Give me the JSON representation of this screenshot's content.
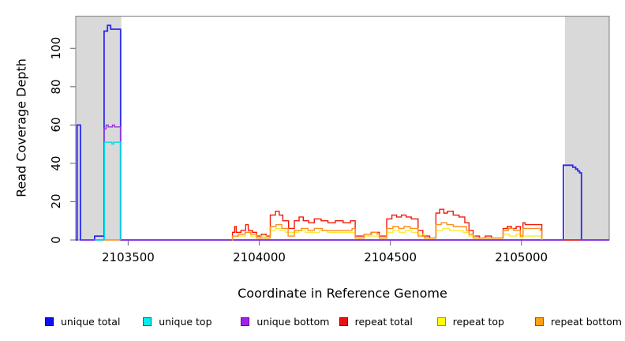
{
  "chart_data": {
    "type": "line",
    "step": true,
    "title": "",
    "xlabel": "Coordinate in Reference Genome",
    "ylabel": "Read Coverage Depth",
    "xlim": [
      2103300,
      2105335
    ],
    "ylim": [
      0,
      116.8
    ],
    "x_ticks": [
      2103500,
      2104000,
      2104500,
      2105000
    ],
    "y_ticks": [
      0,
      20,
      40,
      60,
      80,
      100
    ],
    "grid": false,
    "legend_position": "bottom",
    "colors": {
      "band": "#d9d9d9",
      "box": "#8f8f8f",
      "tick": "#7a7a7a",
      "text": "#000000"
    },
    "shaded_regions": [
      [
        2103302,
        2103474
      ],
      [
        2105166,
        2105335
      ]
    ],
    "series": [
      {
        "name": "unique total",
        "color": "#2a2af2",
        "width": 1.8,
        "segments": [
          [
            [
              2103300,
              0
            ],
            [
              2103305,
              60
            ],
            [
              2103318,
              0
            ],
            [
              2103372,
              2
            ],
            [
              2103408,
              109
            ],
            [
              2103421,
              112
            ],
            [
              2103433,
              110
            ],
            [
              2103471,
              0
            ],
            [
              2105160,
              39
            ],
            [
              2105196,
              38
            ],
            [
              2105207,
              37
            ],
            [
              2105215,
              36
            ],
            [
              2105222,
              35
            ],
            [
              2105229,
              0
            ],
            [
              2105335,
              0
            ]
          ]
        ]
      },
      {
        "name": "unique bottom",
        "color": "#9b30e2",
        "width": 1.4,
        "segments": [
          [
            [
              2103318,
              0
            ],
            [
              2103408,
              58
            ],
            [
              2103416,
              60
            ],
            [
              2103424,
              59
            ],
            [
              2103440,
              60
            ],
            [
              2103448,
              59
            ],
            [
              2103471,
              0
            ],
            [
              2105335,
              0
            ]
          ]
        ]
      },
      {
        "name": "unique top",
        "color": "#00dce8",
        "width": 1.4,
        "segments": [
          [
            [
              2103372,
              0
            ],
            [
              2103410,
              51
            ],
            [
              2103434,
              51
            ],
            [
              2103438,
              50
            ],
            [
              2103444,
              51
            ],
            [
              2103470,
              51
            ],
            [
              2103471,
              0
            ]
          ]
        ]
      },
      {
        "name": "repeat total",
        "color": "#f01a0a",
        "width": 1.4,
        "segments": [
          [
            [
              2103896,
              0
            ],
            [
              2103898,
              4
            ],
            [
              2103906,
              7
            ],
            [
              2103912,
              4
            ],
            [
              2103930,
              5
            ],
            [
              2103948,
              8
            ],
            [
              2103958,
              5
            ],
            [
              2103974,
              4
            ],
            [
              2103990,
              2
            ],
            [
              2104008,
              3
            ],
            [
              2104026,
              2
            ],
            [
              2104042,
              13
            ],
            [
              2104062,
              15
            ],
            [
              2104076,
              13
            ],
            [
              2104090,
              10
            ],
            [
              2104112,
              6
            ],
            [
              2104134,
              10
            ],
            [
              2104152,
              12
            ],
            [
              2104168,
              10
            ],
            [
              2104188,
              9
            ],
            [
              2104210,
              11
            ],
            [
              2104236,
              10
            ],
            [
              2104262,
              9
            ],
            [
              2104290,
              10
            ],
            [
              2104320,
              9
            ],
            [
              2104348,
              10
            ],
            [
              2104366,
              2
            ],
            [
              2104400,
              3
            ],
            [
              2104428,
              4
            ],
            [
              2104458,
              2
            ],
            [
              2104472,
              2
            ],
            [
              2104486,
              11
            ],
            [
              2104506,
              13
            ],
            [
              2104524,
              12
            ],
            [
              2104542,
              13
            ],
            [
              2104560,
              12
            ],
            [
              2104580,
              11
            ],
            [
              2104606,
              5
            ],
            [
              2104624,
              2
            ],
            [
              2104650,
              1
            ],
            [
              2104674,
              14
            ],
            [
              2104688,
              16
            ],
            [
              2104704,
              14
            ],
            [
              2104718,
              15
            ],
            [
              2104740,
              13
            ],
            [
              2104762,
              12
            ],
            [
              2104784,
              9
            ],
            [
              2104800,
              5
            ],
            [
              2104816,
              2
            ],
            [
              2104840,
              1
            ],
            [
              2104862,
              2
            ],
            [
              2104886,
              1
            ],
            [
              2104910,
              1
            ],
            [
              2104930,
              6
            ],
            [
              2104946,
              7
            ],
            [
              2104962,
              6
            ],
            [
              2104980,
              7
            ],
            [
              2104996,
              2
            ],
            [
              2105006,
              9
            ],
            [
              2105014,
              8
            ],
            [
              2105044,
              8
            ],
            [
              2105070,
              8
            ],
            [
              2105078,
              0
            ]
          ],
          [
            [
              2105163,
              0
            ],
            [
              2105228,
              0
            ]
          ]
        ]
      },
      {
        "name": "repeat top",
        "color": "#f7ec3c",
        "width": 1.4,
        "segments": [
          [
            [
              2103896,
              0
            ],
            [
              2103898,
              2
            ],
            [
              2103926,
              2
            ],
            [
              2103948,
              4
            ],
            [
              2103968,
              2
            ],
            [
              2103990,
              1
            ],
            [
              2104008,
              2
            ],
            [
              2104026,
              1
            ],
            [
              2104042,
              5
            ],
            [
              2104062,
              6
            ],
            [
              2104080,
              5
            ],
            [
              2104100,
              4
            ],
            [
              2104126,
              4
            ],
            [
              2104150,
              5
            ],
            [
              2104176,
              4
            ],
            [
              2104202,
              4
            ],
            [
              2104230,
              5
            ],
            [
              2104260,
              4
            ],
            [
              2104292,
              4
            ],
            [
              2104322,
              4
            ],
            [
              2104350,
              4
            ],
            [
              2104366,
              1
            ],
            [
              2104400,
              2
            ],
            [
              2104430,
              2
            ],
            [
              2104458,
              1
            ],
            [
              2104486,
              4
            ],
            [
              2104510,
              5
            ],
            [
              2104534,
              4
            ],
            [
              2104558,
              5
            ],
            [
              2104582,
              4
            ],
            [
              2104606,
              3
            ],
            [
              2104630,
              1
            ],
            [
              2104674,
              5
            ],
            [
              2104700,
              6
            ],
            [
              2104726,
              5
            ],
            [
              2104752,
              5
            ],
            [
              2104778,
              4
            ],
            [
              2104800,
              2
            ],
            [
              2104820,
              1
            ],
            [
              2104850,
              1
            ],
            [
              2104880,
              1
            ],
            [
              2104910,
              1
            ],
            [
              2104930,
              3
            ],
            [
              2104954,
              2
            ],
            [
              2104980,
              3
            ],
            [
              2104996,
              1
            ],
            [
              2105006,
              2
            ],
            [
              2105040,
              2
            ],
            [
              2105070,
              2
            ],
            [
              2105078,
              0
            ]
          ]
        ]
      },
      {
        "name": "repeat bottom",
        "color": "#ff8d1e",
        "width": 1.4,
        "segments": [
          [
            [
              2103896,
              0
            ],
            [
              2103898,
              2
            ],
            [
              2103920,
              3
            ],
            [
              2103946,
              4
            ],
            [
              2103968,
              3
            ],
            [
              2103990,
              1
            ],
            [
              2104010,
              1
            ],
            [
              2104042,
              7
            ],
            [
              2104064,
              8
            ],
            [
              2104086,
              6
            ],
            [
              2104110,
              2
            ],
            [
              2104134,
              5
            ],
            [
              2104160,
              6
            ],
            [
              2104186,
              5
            ],
            [
              2104210,
              6
            ],
            [
              2104240,
              5
            ],
            [
              2104270,
              5
            ],
            [
              2104302,
              5
            ],
            [
              2104332,
              5
            ],
            [
              2104354,
              6
            ],
            [
              2104366,
              1
            ],
            [
              2104400,
              3
            ],
            [
              2104426,
              4
            ],
            [
              2104450,
              3
            ],
            [
              2104458,
              1
            ],
            [
              2104486,
              6
            ],
            [
              2104510,
              7
            ],
            [
              2104532,
              6
            ],
            [
              2104552,
              7
            ],
            [
              2104576,
              6
            ],
            [
              2104606,
              2
            ],
            [
              2104630,
              1
            ],
            [
              2104674,
              8
            ],
            [
              2104694,
              9
            ],
            [
              2104716,
              8
            ],
            [
              2104740,
              7
            ],
            [
              2104766,
              7
            ],
            [
              2104790,
              5
            ],
            [
              2104800,
              3
            ],
            [
              2104816,
              1
            ],
            [
              2104846,
              1
            ],
            [
              2104876,
              1
            ],
            [
              2104906,
              1
            ],
            [
              2104930,
              5
            ],
            [
              2104950,
              6
            ],
            [
              2104970,
              5
            ],
            [
              2104990,
              5
            ],
            [
              2104996,
              2
            ],
            [
              2105006,
              6
            ],
            [
              2105034,
              6
            ],
            [
              2105062,
              6
            ],
            [
              2105072,
              5
            ],
            [
              2105078,
              0
            ]
          ],
          [
            [
              2103408,
              0
            ],
            [
              2103471,
              0
            ]
          ]
        ]
      }
    ]
  },
  "legend": {
    "items": [
      {
        "label": "unique total",
        "fill": "#1010ee",
        "border": "#00008b"
      },
      {
        "label": "unique top",
        "fill": "#00eeee",
        "border": "#006f6f"
      },
      {
        "label": "unique bottom",
        "fill": "#a020f0",
        "border": "#5c0f8b"
      },
      {
        "label": "repeat total",
        "fill": "#ee1010",
        "border": "#8b0000"
      },
      {
        "label": "repeat top",
        "fill": "#ffff00",
        "border": "#9a9a00"
      },
      {
        "label": "repeat bottom",
        "fill": "#ffa010",
        "border": "#8b5a00"
      }
    ]
  }
}
